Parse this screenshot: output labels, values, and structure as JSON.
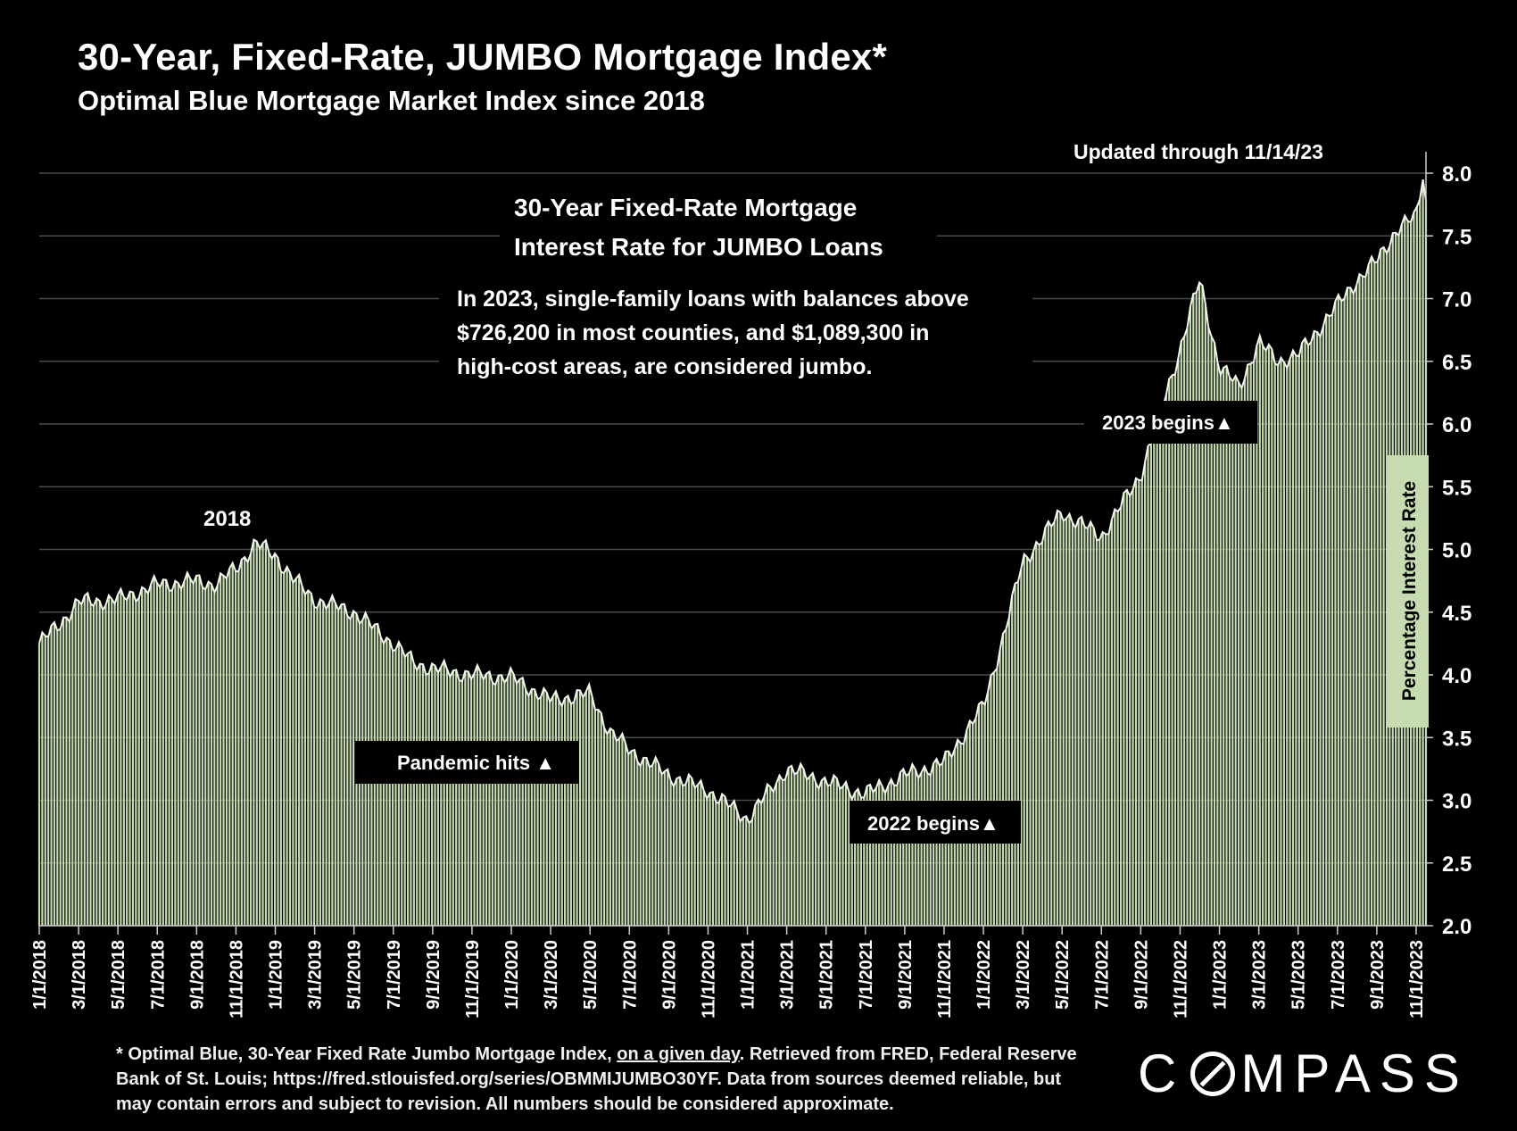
{
  "header": {
    "title": "30-Year, Fixed-Rate, JUMBO Mortgage Index*",
    "subtitle": "Optimal Blue Mortgage Market Index since 2018"
  },
  "chart_data": {
    "type": "bar",
    "title": "30-Year Fixed-Rate Mortgage Interest Rate for JUMBO Loans",
    "ylabel": "Percentage Interest Rate",
    "ylim": [
      2.0,
      8.2
    ],
    "yticks": [
      "2.0",
      "2.5",
      "3.0",
      "3.5",
      "4.0",
      "4.5",
      "5.0",
      "5.5",
      "6.0",
      "6.5",
      "7.0",
      "7.5",
      "8.0"
    ],
    "xticks": [
      "1/1/2018",
      "3/1/2018",
      "5/1/2018",
      "7/1/2018",
      "9/1/2018",
      "11/1/2018",
      "1/1/2019",
      "3/1/2019",
      "5/1/2019",
      "7/1/2019",
      "9/1/2019",
      "11/1/2019",
      "1/1/2020",
      "3/1/2020",
      "5/1/2020",
      "7/1/2020",
      "9/1/2020",
      "11/1/2020",
      "1/1/2021",
      "3/1/2021",
      "5/1/2021",
      "7/1/2021",
      "9/1/2021",
      "11/1/2021",
      "1/1/2022",
      "3/1/2022",
      "5/1/2022",
      "7/1/2022",
      "9/1/2022",
      "11/1/2022",
      "1/1/2023",
      "3/1/2023",
      "5/1/2023",
      "7/1/2023",
      "9/1/2023",
      "11/1/2023"
    ],
    "x_months": [
      0,
      70.5
    ],
    "anchors_month": [
      0,
      1,
      2,
      4,
      6,
      8,
      9,
      10,
      11,
      12,
      13,
      14,
      16,
      18,
      19,
      20,
      22,
      24,
      26,
      28,
      29,
      30,
      32,
      34,
      36,
      38,
      39,
      40,
      42,
      44,
      46,
      48,
      49,
      50,
      52,
      54,
      56,
      58,
      59,
      60,
      61,
      62,
      63,
      64,
      66,
      67,
      68,
      69,
      70,
      70.5
    ],
    "anchors_rate": [
      4.25,
      4.4,
      4.58,
      4.6,
      4.72,
      4.75,
      4.72,
      4.85,
      5.05,
      4.95,
      4.75,
      4.6,
      4.5,
      4.25,
      4.1,
      4.05,
      4.0,
      3.98,
      3.8,
      3.85,
      3.55,
      3.4,
      3.2,
      3.08,
      2.85,
      3.25,
      3.2,
      3.15,
      3.05,
      3.2,
      3.3,
      3.75,
      4.3,
      4.9,
      5.3,
      5.1,
      5.6,
      6.6,
      7.15,
      6.45,
      6.3,
      6.65,
      6.5,
      6.55,
      6.95,
      7.15,
      7.3,
      7.55,
      7.65,
      8.15
    ],
    "series_end": 7.78,
    "annotations": {
      "updated": "Updated through 11/14/23",
      "chart_title_line1": "30-Year   Fixed-Rate   Mortgage",
      "chart_title_line2": "Interest Rate for JUMBO Loans",
      "description": [
        "In 2023, single-family loans with balances above",
        "$726,200  in  most    counties,  and  $1,089,300  in",
        "high-cost areas, are considered jumbo."
      ],
      "label_2018": "2018",
      "pandemic": "Pandemic hits",
      "begins_2022": "2022 begins",
      "begins_2023": "2023 begins",
      "arrow": "▲"
    },
    "colors": {
      "bar": "#c6dcb0",
      "background": "#000000",
      "grid": "#4a4a4a",
      "label_box": "#c6dcb0"
    }
  },
  "footnote": {
    "text_pre": "* Optimal Blue, 30-Year Fixed Rate Jumbo Mortgage Index, ",
    "text_underlined": "on a given day",
    "text_post": ". Retrieved from FRED, Federal Reserve Bank of St. Louis; https://fred.stlouisfed.org/series/OBMMIJUMBO30YF. Data from sources deemed reliable, but may contain errors and subject to revision. All numbers should be considered approximate."
  },
  "logo": {
    "pre": "C",
    "post": "MPASS"
  }
}
